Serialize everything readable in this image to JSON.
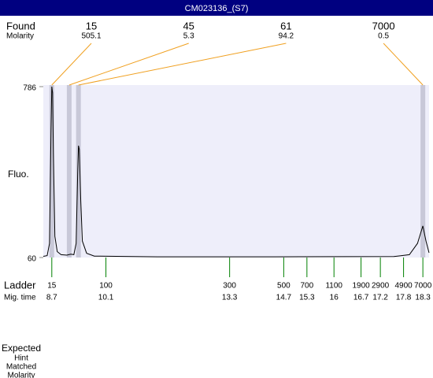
{
  "chart_data": {
    "type": "line",
    "title": "CM023136_(S7)",
    "y_label": "Fluo.",
    "ylim": [
      60,
      786
    ],
    "yticks": [
      60,
      786
    ],
    "xlim": [
      8.48,
      18.46
    ],
    "series": [
      {
        "color": "#000000",
        "x": [
          8.48,
          8.58,
          8.64,
          8.68,
          8.7,
          8.72,
          8.74,
          8.78,
          8.84,
          8.94,
          9.09,
          9.19,
          9.27,
          9.33,
          9.37,
          9.39,
          9.41,
          9.45,
          9.49,
          9.6,
          9.8,
          11.43,
          14.49,
          17.55,
          17.95,
          18.16,
          18.3,
          18.38,
          18.46
        ],
        "values": [
          65,
          68,
          120,
          600,
          786,
          760,
          500,
          150,
          85,
          72,
          70,
          74,
          72,
          120,
          420,
          535,
          520,
          300,
          130,
          78,
          66,
          63,
          63,
          64,
          72,
          120,
          194,
          130,
          80
        ]
      }
    ],
    "found": {
      "label": "Found",
      "molarity_label": "Molarity",
      "sizes": [
        15,
        45,
        61,
        7000
      ],
      "molarity": [
        505.1,
        5.3,
        94.2,
        0.5
      ],
      "times": [
        8.7,
        9.15,
        9.39,
        18.3
      ]
    },
    "ladder": {
      "label": "Ladder",
      "time_label": "Mig. time",
      "sizes": [
        15,
        100,
        300,
        500,
        700,
        1100,
        1900,
        2900,
        4900,
        7000
      ],
      "times": [
        8.7,
        10.1,
        13.3,
        14.7,
        15.3,
        16,
        16.7,
        17.2,
        17.8,
        18.3
      ]
    },
    "footer": {
      "expected": "Expected",
      "hint": "Hint",
      "matched": "Matched",
      "molarity": "Molarity"
    }
  }
}
